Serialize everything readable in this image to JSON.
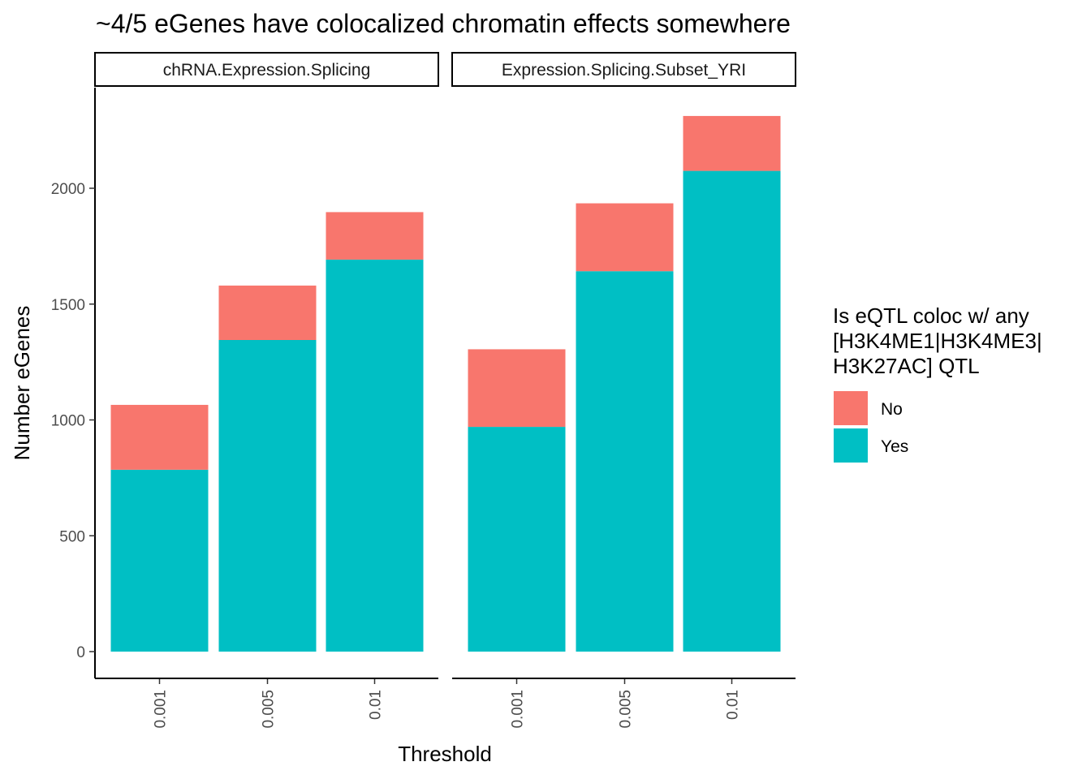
{
  "chart_data": {
    "type": "bar",
    "stacked": true,
    "title": "~4/5 eGenes have colocalized chromatin effects somewhere",
    "xlabel": "Threshold",
    "ylabel": "Number eGenes",
    "ylim": [
      0,
      2320
    ],
    "yticks": [
      0,
      500,
      1000,
      1500,
      2000
    ],
    "categories": [
      "0.001",
      "0.005",
      "0.01"
    ],
    "legend": {
      "title_lines": [
        "Is eQTL coloc w/ any",
        "[H3K4ME1|H3K4ME3|",
        "H3K27AC] QTL"
      ],
      "position": "right"
    },
    "colors": {
      "No": "#F8766D",
      "Yes": "#00BFC4"
    },
    "facets": [
      {
        "label": "chRNA.Expression.Splicing",
        "series": [
          {
            "name": "Yes",
            "values": [
              785,
              1345,
              1692
            ]
          },
          {
            "name": "No",
            "values": [
              280,
              235,
              205
            ]
          }
        ]
      },
      {
        "label": "Expression.Splicing.Subset_YRI",
        "series": [
          {
            "name": "Yes",
            "values": [
              970,
              1642,
              2075
            ]
          },
          {
            "name": "No",
            "values": [
              335,
              293,
              237
            ]
          }
        ]
      }
    ]
  }
}
